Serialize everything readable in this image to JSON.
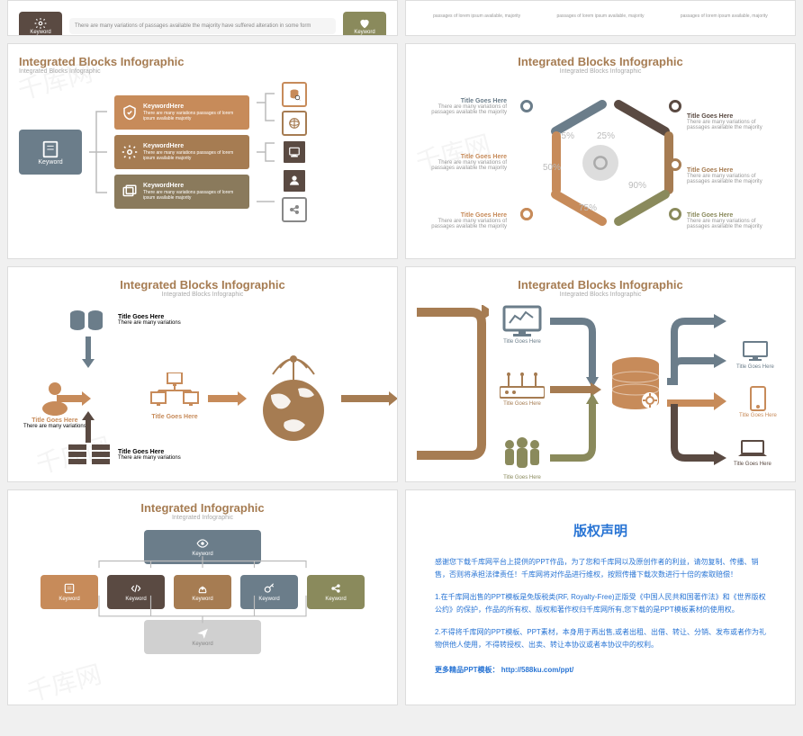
{
  "colors": {
    "brown_dark": "#5a4a42",
    "brown": "#a67c52",
    "tan": "#c9a876",
    "steel": "#6b7d8a",
    "olive": "#8a8a5c",
    "orange": "#c78b5a",
    "grey": "#888888",
    "light_grey": "#d0d0d0"
  },
  "row0_left": {
    "box1": {
      "color": "#5a4a42",
      "label": "Keyword"
    },
    "text": "There are many variations of passages available the majority have suffered alteration in some form",
    "box2": {
      "color": "#8a8a5c",
      "label": "Keyword"
    }
  },
  "row0_right": {
    "cols": [
      {
        "text": "passages of lorem ipsum available, majority"
      },
      {
        "text": "passages of lorem ipsum available, majority"
      },
      {
        "text": "passages of lorem ipsum available, majority"
      }
    ]
  },
  "slide1": {
    "title": "Integrated Blocks Infographic",
    "subtitle": "Integrated Blocks Infographic",
    "title_color": "#a67c52",
    "left": {
      "color": "#6b7d8a",
      "label": "Keyword"
    },
    "bars": [
      {
        "color": "#c78b5a",
        "title": "KeywordHere",
        "text": "There are many variations passages of lorem ipsum available majority"
      },
      {
        "color": "#a67c52",
        "title": "KeywordHere",
        "text": "There are many variations passages of lorem ipsum available majority"
      },
      {
        "color": "#8a7a5c",
        "title": "KeywordHere",
        "text": "There are many variations passages of lorem ipsum available majority"
      }
    ],
    "right_icons": [
      {
        "bg": "#fff",
        "stroke": "#c78b5a"
      },
      {
        "bg": "#fff",
        "stroke": "#a67c52"
      },
      {
        "bg": "#5a4a42",
        "stroke": "#fff"
      },
      {
        "bg": "#5a4a42",
        "stroke": "#fff"
      },
      {
        "bg": "#fff",
        "stroke": "#888"
      }
    ]
  },
  "slide2": {
    "title": "Integrated Blocks Infographic",
    "subtitle": "Integrated Blocks Infographic",
    "title_color": "#a67c52",
    "segments": [
      {
        "color": "#6b7d8a",
        "pct": "25%",
        "title": "Title Goes Here",
        "text": "There are many variations of passages available the majority",
        "align": "r"
      },
      {
        "color": "#5a4a42",
        "pct": "25%",
        "title": "Title Goes Here",
        "text": "There are many variations of passages available the majority",
        "align": "l"
      },
      {
        "color": "#c78b5a",
        "pct": "50%",
        "title": "Title Goes Here",
        "text": "There are many variations of passages available the majority",
        "align": "r"
      },
      {
        "color": "#a67c52",
        "pct": "90%",
        "title": "Title Goes Here",
        "text": "There are many variations of passages available the majority",
        "align": "l"
      },
      {
        "color": "#c78b5a",
        "pct": "75%",
        "title": "Title Goes Here",
        "text": "There are many variations of passages available the majority",
        "align": "r"
      },
      {
        "color": "#8a8a5c",
        "pct": "",
        "title": "Title Goes Here",
        "text": "There are many variations of passages available the majority",
        "align": "l"
      }
    ]
  },
  "slide3": {
    "title": "Integrated Blocks Infographic",
    "subtitle": "Integrated Blocks Infographic",
    "title_color": "#a67c52",
    "nodes": {
      "user": {
        "color": "#c78b5a",
        "title": "Title Goes Here",
        "text": "There are many variations"
      },
      "db1": {
        "color": "#6b7d8a",
        "title": "Title Goes Here",
        "text": "There are many variations"
      },
      "rack": {
        "color": "#5a4a42",
        "title": "Title Goes Here",
        "text": "There are many variations"
      },
      "computers": {
        "color": "#c78b5a",
        "title": "Title Goes Here",
        "text": ""
      },
      "globe": {
        "color": "#a67c52"
      }
    }
  },
  "slide4": {
    "title": "Integrated Blocks Infographic",
    "subtitle": "Integrated Blocks Infographic",
    "title_color": "#a67c52",
    "nodes": {
      "monitor": {
        "color": "#6b7d8a",
        "title": "Title Goes Here"
      },
      "router": {
        "color": "#a67c52",
        "title": "Title Goes Here"
      },
      "people": {
        "color": "#8a8a5c",
        "title": "Title Goes Here"
      },
      "db": {
        "color": "#c78b5a"
      },
      "pc": {
        "color": "#6b7d8a",
        "title": "Title Goes Here"
      },
      "phone": {
        "color": "#c78b5a",
        "title": "Title Goes Here"
      },
      "laptop": {
        "color": "#5a4a42",
        "title": "Title Goes Here"
      }
    }
  },
  "slide5": {
    "title": "Integrated Infographic",
    "subtitle": "Integrated Infographic",
    "title_color": "#a67c52",
    "top": {
      "color": "#6b7d8a",
      "label": "Keyword"
    },
    "mid": [
      {
        "color": "#c78b5a",
        "label": "Keyword"
      },
      {
        "color": "#5a4a42",
        "label": "Keyword"
      },
      {
        "color": "#a67c52",
        "label": "Keyword"
      },
      {
        "color": "#6b7d8a",
        "label": "Keyword"
      },
      {
        "color": "#8a8a5c",
        "label": "Keyword"
      }
    ],
    "bottom": {
      "color": "#d0d0d0",
      "label": "Keyword"
    }
  },
  "slide6": {
    "title": "版权声明",
    "p1": "感谢您下载千库网平台上提供的PPT作品，为了您和千库网以及原创作者的利益，请勿复制、传播、销售，否则将承担法律责任！千库网将对作品进行维权，按照传播下载次数进行十倍的索取赔偿！",
    "p2": "1.在千库网出售的PPT模板是免版税类(RF, Royalty-Free)正版受《中国人民共和国著作法》和《世界版权公约》的保护，作品的所有权、版权和著作权归千库网所有,您下载的是PPT模板素材的使用权。",
    "p3": "2.不得将千库网的PPT模板、PPT素材，本身用于再出售,或者出租、出借、转让、分销、发布或者作为礼物供他人使用，不得转授权、出卖、转让本协议或者本协议中的权利。",
    "link_label": "更多精品PPT模板：",
    "link_url": "http://588ku.com/ppt/"
  },
  "watermark": "千库网"
}
